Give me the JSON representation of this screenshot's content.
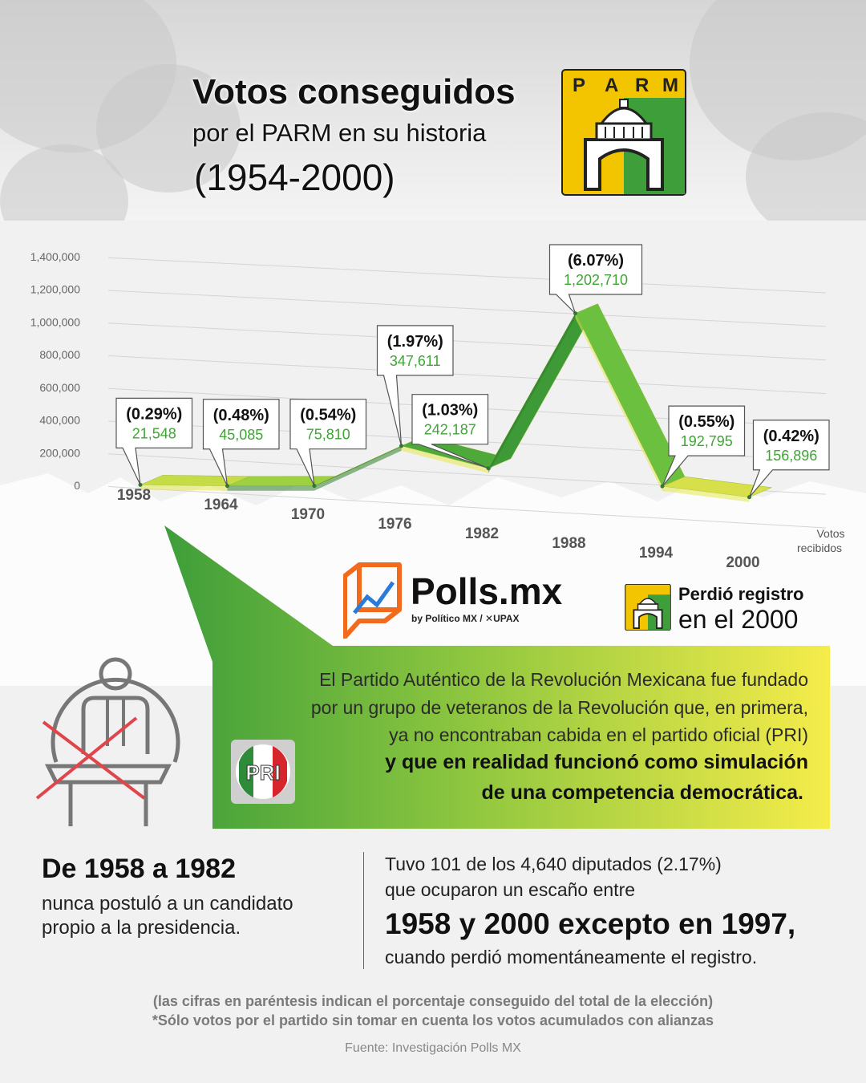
{
  "header": {
    "title": "Votos conseguidos",
    "subtitle": "por el PARM en su historia",
    "years": "(1954-2000)",
    "logo_letters": [
      "P",
      "A",
      "R",
      "M"
    ]
  },
  "chart_data": {
    "type": "line",
    "x": [
      "1958",
      "1964",
      "1970",
      "1976",
      "1982",
      "1988",
      "1994",
      "2000"
    ],
    "series": [
      {
        "values": [
          21548,
          45085,
          75810,
          347611,
          242187,
          1202710,
          192795,
          156896
        ]
      }
    ],
    "percent_labels": [
      "(0.29%)",
      "(0.48%)",
      "(0.54%)",
      "(1.97%)",
      "(1.03%)",
      "(6.07%)",
      "(0.55%)",
      "(0.42%)"
    ],
    "value_labels": [
      "21,548",
      "45,085",
      "75,810",
      "347,611",
      "242,187",
      "1,202,710",
      "192,795",
      "156,896"
    ],
    "y_ticks": [
      "0",
      "200,000",
      "400,000",
      "600,000",
      "800,000",
      "1,000,000",
      "1,200,000",
      "1,400,000"
    ],
    "ylim": [
      0,
      1400000
    ],
    "xlabel": "Votos recibidos",
    "ylabel": "",
    "grid": true
  },
  "branding": {
    "polls": "Polls.mx",
    "polls_by": "by Político MX  /  ✕UPAX",
    "perdio_1": "Perdió registro",
    "perdio_2": "en el 2000",
    "pri_label": "PRI"
  },
  "description": {
    "line1": "El Partido Auténtico de la Revolución Mexicana fue fundado",
    "line2": "por un grupo de veteranos de la Revolución que, en primera,",
    "line3": "ya no encontraban cabida en el partido oficial (PRI)",
    "line4": "y que en realidad funcionó como simulación",
    "line5": "de una competencia democrática."
  },
  "facts": {
    "left_title": "De 1958 a 1982",
    "left_text": "nunca postuló a un candidato propio a la presidencia.",
    "right_1": "Tuvo 101 de los 4,640 diputados (2.17%)",
    "right_2": "que ocuparon un escaño entre",
    "right_big": "1958 y 2000 excepto en 1997,",
    "right_3": "cuando perdió momentáneamente el registro."
  },
  "footer": {
    "note1": "(las cifras en paréntesis indican el porcentaje conseguido del total de la elección)",
    "note2": "*Sólo votos por el partido sin tomar en cuenta los votos acumulados con alianzas",
    "source": "Fuente: Investigación Polls MX"
  },
  "colors": {
    "green": "#3e9e3a",
    "light_green": "#6cc24a",
    "yellow": "#e8e54a",
    "logo_yellow": "#f2c500",
    "text_green": "#3fa535"
  }
}
